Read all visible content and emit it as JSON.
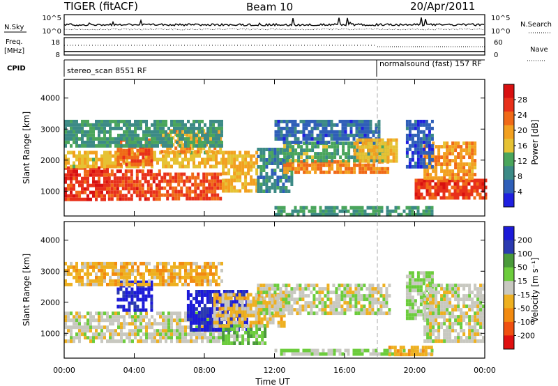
{
  "header": {
    "station": "TIGER (fitACF)",
    "beam": "Beam 10",
    "date": "20/Apr/2011"
  },
  "strip_panels": {
    "nsky_label": "N.Sky",
    "nsearch_label": "N.Search",
    "count_tick_top": "10^5",
    "count_tick_bottom": "10^0",
    "freq_label_line1": "Freq.",
    "freq_label_line2": "[MHz]",
    "freq_ticks": [
      "18",
      "8"
    ],
    "nave_label": "Nave",
    "nave_ticks": [
      "60",
      "0"
    ],
    "cpid_label": "CPID",
    "cpid_segments": [
      {
        "label": "stereo_scan 8551 RF",
        "start_hour": 0
      },
      {
        "label": "normalsound (fast) 157 RF",
        "start_hour": 18
      }
    ]
  },
  "time_axis": {
    "label": "Time UT",
    "ticks": [
      "00:00",
      "04:00",
      "08:00",
      "12:00",
      "16:00",
      "20:00",
      "00:00"
    ]
  },
  "colors": {
    "power_scale": [
      "#1f1fe0",
      "#2f5fb8",
      "#3c8a86",
      "#4aa55c",
      "#e6c234",
      "#f2a020",
      "#f06a18",
      "#e8301a",
      "#d81010"
    ],
    "velocity_scale": [
      "#e01010",
      "#f05010",
      "#f28a10",
      "#eeb020",
      "#c8c8c0",
      "#6ccc3c",
      "#4a9a3a",
      "#2b3ab0",
      "#1c1ad8"
    ]
  },
  "chart_data": [
    {
      "type": "heatmap",
      "name": "power",
      "ylabel": "Slant Range [km]",
      "yticks": [
        1000,
        2000,
        3000,
        4000
      ],
      "ylim": [
        200,
        4600
      ],
      "xlim_hours": [
        0,
        24
      ],
      "colorbar": {
        "label": "Power [dB]",
        "ticks": [
          "4",
          "8",
          "12",
          "16",
          "20",
          "24",
          "28"
        ],
        "range": [
          0,
          32
        ]
      },
      "regions": [
        {
          "t0": 0.0,
          "t1": 2.5,
          "r0": 700,
          "r1": 1800,
          "value": 27
        },
        {
          "t0": 2.5,
          "t1": 5.5,
          "r0": 750,
          "r1": 1700,
          "value": 26
        },
        {
          "t0": 5.5,
          "t1": 9.0,
          "r0": 750,
          "r1": 1600,
          "value": 25
        },
        {
          "t0": 0.0,
          "t1": 9.0,
          "r0": 1800,
          "r1": 2300,
          "value": 17
        },
        {
          "t0": 3.0,
          "t1": 5.0,
          "r0": 1900,
          "r1": 2700,
          "value": 24
        },
        {
          "t0": 5.5,
          "t1": 9.0,
          "r0": 2300,
          "r1": 3000,
          "value": 19
        },
        {
          "t0": 0.0,
          "t1": 9.0,
          "r0": 2500,
          "r1": 3300,
          "value": 10
        },
        {
          "t0": 9.0,
          "t1": 11.0,
          "r0": 1000,
          "r1": 2300,
          "value": 18
        },
        {
          "t0": 11.0,
          "t1": 13.0,
          "r0": 1000,
          "r1": 2400,
          "value": 9
        },
        {
          "t0": 12.5,
          "t1": 18.5,
          "r0": 1650,
          "r1": 2000,
          "value": 22
        },
        {
          "t0": 12.5,
          "t1": 18.5,
          "r0": 2000,
          "r1": 2600,
          "value": 12
        },
        {
          "t0": 12.0,
          "t1": 18.0,
          "r0": 2600,
          "r1": 3300,
          "value": 6
        },
        {
          "t0": 16.5,
          "t1": 19.0,
          "r0": 2000,
          "r1": 2700,
          "value": 18
        },
        {
          "t0": 12.0,
          "t1": 21.0,
          "r0": 280,
          "r1": 520,
          "value": 11
        },
        {
          "t0": 20.0,
          "t1": 24.0,
          "r0": 750,
          "r1": 1400,
          "value": 26
        },
        {
          "t0": 20.5,
          "t1": 23.5,
          "r0": 1400,
          "r1": 2600,
          "value": 20
        },
        {
          "t0": 19.5,
          "t1": 21.0,
          "r0": 1800,
          "r1": 3300,
          "value": 5
        }
      ]
    },
    {
      "type": "heatmap",
      "name": "velocity",
      "ylabel": "Slant Range [km]",
      "yticks": [
        1000,
        2000,
        3000,
        4000
      ],
      "ylim": [
        200,
        4600
      ],
      "xlim_hours": [
        0,
        24
      ],
      "colorbar": {
        "label": "Velocity [m s⁻¹]",
        "ticks": [
          "200",
          "100",
          "50",
          "15",
          "-15",
          "-50",
          "-100",
          "-200"
        ],
        "range": [
          -250,
          250
        ]
      },
      "regions": [
        {
          "t0": 0.0,
          "t1": 9.0,
          "r0": 700,
          "r1": 1700,
          "value": 0
        },
        {
          "t0": 3.0,
          "t1": 5.0,
          "r0": 1800,
          "r1": 2700,
          "value": 220
        },
        {
          "t0": 7.0,
          "t1": 10.5,
          "r0": 1100,
          "r1": 2400,
          "value": 210
        },
        {
          "t0": 9.0,
          "t1": 11.5,
          "r0": 700,
          "r1": 1300,
          "value": 60
        },
        {
          "t0": 8.5,
          "t1": 12.5,
          "r0": 1200,
          "r1": 2300,
          "value": -40
        },
        {
          "t0": 11.0,
          "t1": 18.5,
          "r0": 1650,
          "r1": 2600,
          "value": 0
        },
        {
          "t0": 12.0,
          "t1": 21.0,
          "r0": 280,
          "r1": 500,
          "value": 30
        },
        {
          "t0": 18.5,
          "t1": 21.0,
          "r0": 280,
          "r1": 600,
          "value": -70
        },
        {
          "t0": 19.5,
          "t1": 21.0,
          "r0": 1500,
          "r1": 3000,
          "value": 40
        },
        {
          "t0": 20.5,
          "t1": 24.0,
          "r0": 700,
          "r1": 2600,
          "value": 0
        },
        {
          "t0": 0.0,
          "t1": 9.0,
          "r0": 2600,
          "r1": 3300,
          "value": -60
        }
      ]
    }
  ]
}
